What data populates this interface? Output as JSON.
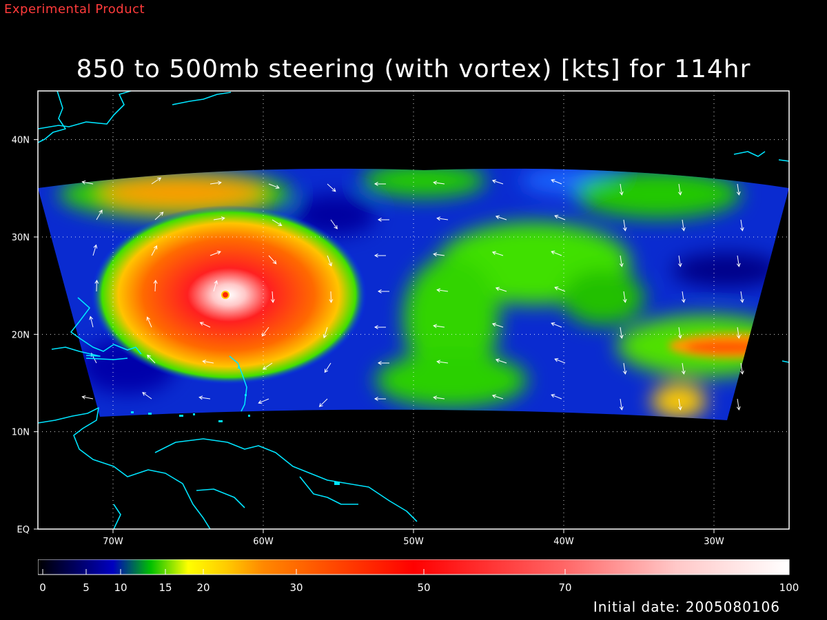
{
  "product_label": "Experimental Product",
  "title": "850 to 500mb steering (with vortex) [kts] for 114hr",
  "initial_date_label": "Initial date: 2005080106",
  "map": {
    "lat_ticks": [
      {
        "lat": 40,
        "label": "40N"
      },
      {
        "lat": 30,
        "label": "30N"
      },
      {
        "lat": 20,
        "label": "20N"
      },
      {
        "lat": 10,
        "label": "10N"
      },
      {
        "lat": 0,
        "label": "EQ"
      }
    ],
    "lon_ticks": [
      {
        "lon": -70,
        "label": "70W"
      },
      {
        "lon": -60,
        "label": "60W"
      },
      {
        "lon": -50,
        "label": "50W"
      },
      {
        "lon": -40,
        "label": "40W"
      },
      {
        "lon": -30,
        "label": "30W"
      }
    ],
    "lon_range": [
      -75,
      -25
    ],
    "lat_range": [
      0,
      45
    ],
    "gridlines": true,
    "coastline_color": "#00e5ff"
  },
  "colorbar": {
    "range": [
      0,
      100
    ],
    "tick_labels": [
      {
        "value": 0,
        "label": "0"
      },
      {
        "value": 5,
        "label": "5"
      },
      {
        "value": 10,
        "label": "10"
      },
      {
        "value": 15,
        "label": "15"
      },
      {
        "value": 20,
        "label": "20"
      },
      {
        "value": 30,
        "label": "30"
      },
      {
        "value": 50,
        "label": "50"
      },
      {
        "value": 70,
        "label": "70"
      },
      {
        "value": 100,
        "label": "100"
      }
    ]
  },
  "colors": {
    "background": "#000000",
    "product_label": "#ff3b3b",
    "text": "#ffffff",
    "vectors": "#ffffff"
  }
}
